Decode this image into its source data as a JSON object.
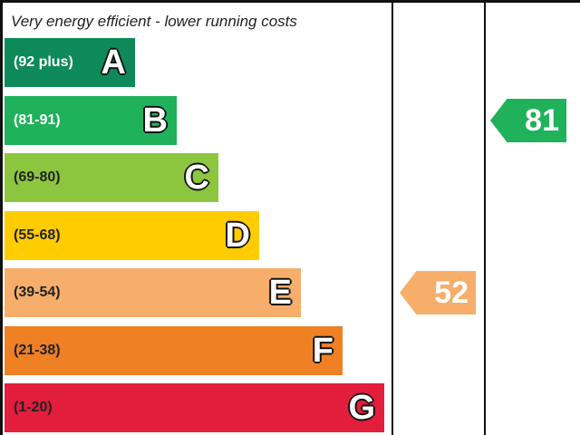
{
  "chart_data": {
    "type": "bar",
    "title": "Very energy efficient - lower running costs",
    "bands": [
      {
        "range": "(92 plus)",
        "letter": "A",
        "color": "#0e8a5a",
        "range_color": "#ffffff"
      },
      {
        "range": "(81-91)",
        "letter": "B",
        "color": "#1fb25a",
        "range_color": "#ffffff"
      },
      {
        "range": "(69-80)",
        "letter": "C",
        "color": "#8cc63f",
        "range_color": "#222222"
      },
      {
        "range": "(55-68)",
        "letter": "D",
        "color": "#ffcc00",
        "range_color": "#222222"
      },
      {
        "range": "(39-54)",
        "letter": "E",
        "color": "#f6ae6a",
        "range_color": "#222222"
      },
      {
        "range": "(21-38)",
        "letter": "F",
        "color": "#ef8023",
        "range_color": "#222222"
      },
      {
        "range": "(1-20)",
        "letter": "G",
        "color": "#e31d3c",
        "range_color": "#222222"
      }
    ],
    "current": {
      "value": "52",
      "band": "E",
      "color": "#f6ae6a"
    },
    "potential": {
      "value": "81",
      "band": "B",
      "color": "#1fb25a"
    }
  }
}
